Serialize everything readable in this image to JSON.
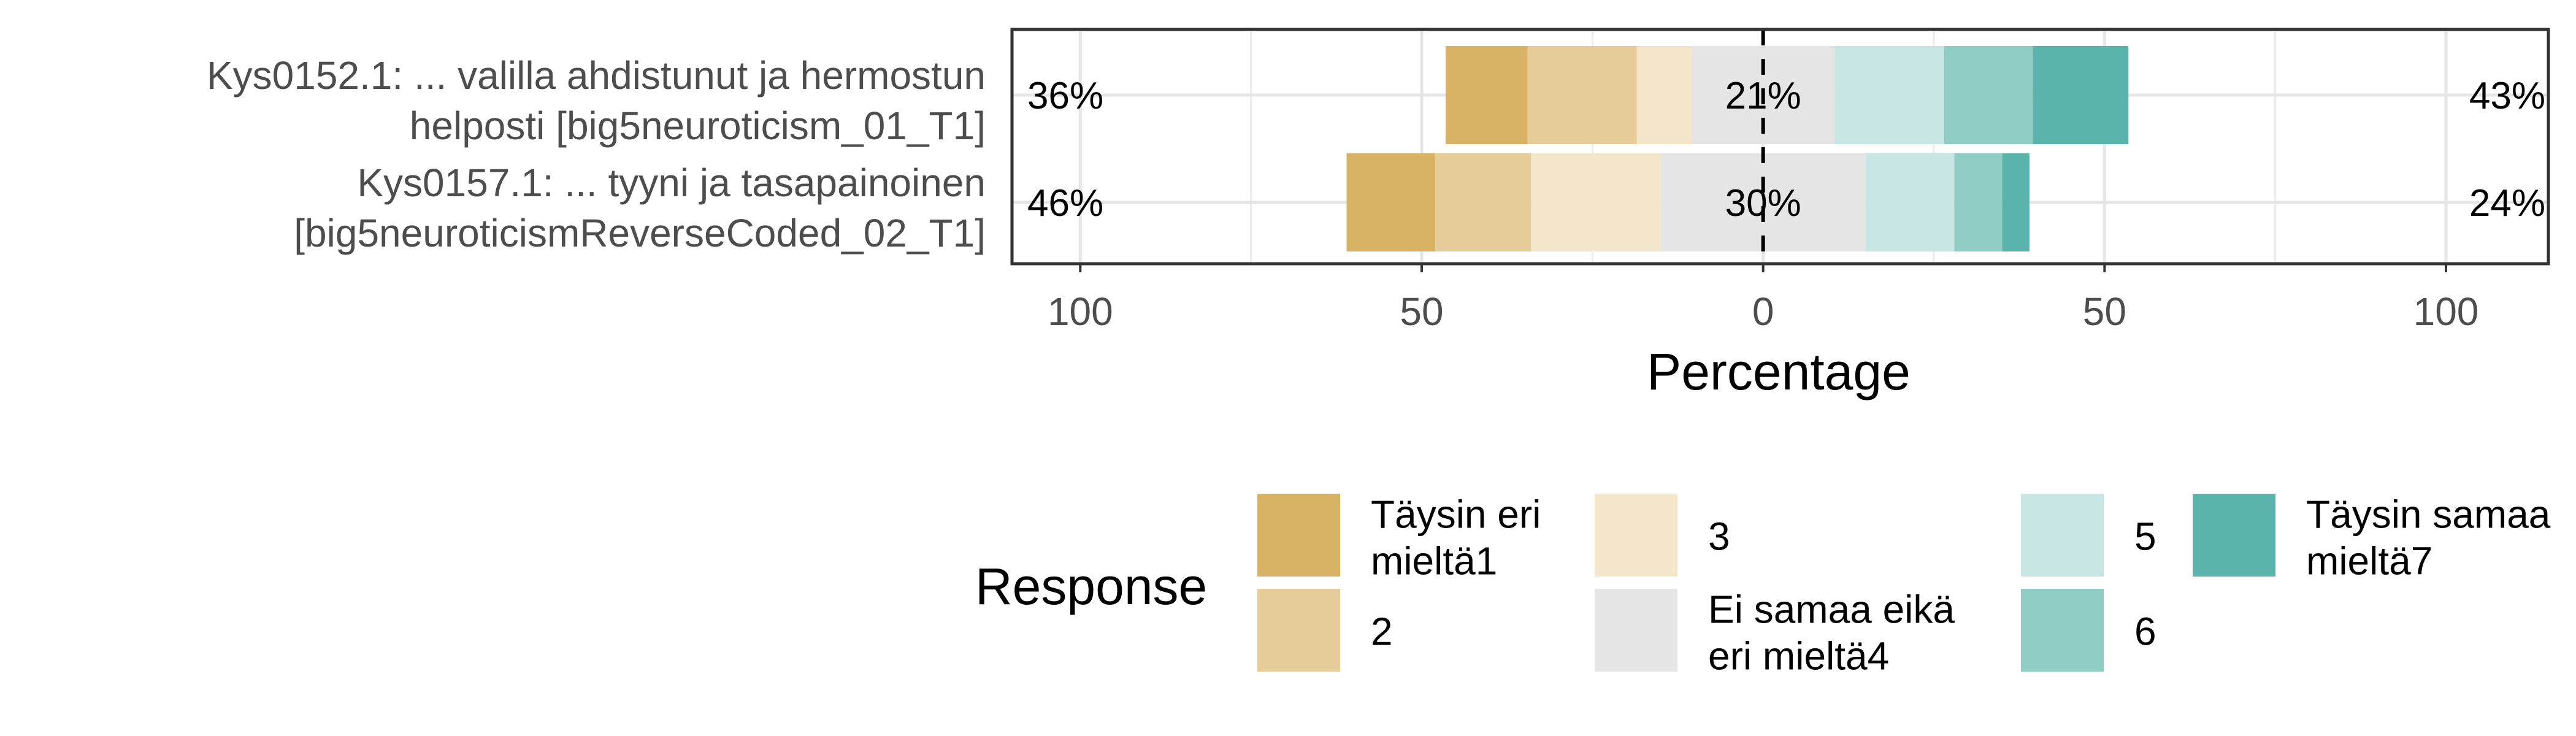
{
  "chart_data": {
    "type": "bar",
    "subtype": "diverging-stacked-likert",
    "xlabel": "Percentage",
    "xlim": [
      -110,
      115
    ],
    "x_ticks": [
      -100,
      -50,
      0,
      50,
      100
    ],
    "x_tick_labels": [
      "100",
      "50",
      "0",
      "50",
      "100"
    ],
    "grid": true,
    "legend_title": "Response",
    "legend_position": "bottom",
    "levels": [
      {
        "name": "Täysin eri mieltä1",
        "color": "#d8b365"
      },
      {
        "name": "2",
        "color": "#e6cc98"
      },
      {
        "name": "3",
        "color": "#f4e6cb"
      },
      {
        "name": "Ei samaa eikä eri mieltä4",
        "color": "#e5e5e5"
      },
      {
        "name": "5",
        "color": "#c7e6e3"
      },
      {
        "name": "6",
        "color": "#8fcdc4"
      },
      {
        "name": "Täysin samaa mieltä7",
        "color": "#5ab4ac"
      }
    ],
    "items": [
      {
        "label_line1": "Kys0152.1: ... valilla ahdistunut ja hermostun",
        "label_line2": "helposti [big5neuroticism_01_T1]",
        "values": [
          12,
          16,
          8,
          21,
          16,
          13,
          14
        ],
        "low_label": "36%",
        "neutral_label": "21%",
        "high_label": "43%"
      },
      {
        "label_line1": "Kys0157.1: ... tyyni ja tasapainoinen",
        "label_line2": "[big5neuroticismReverseCoded_02_T1]",
        "values": [
          13,
          14,
          19,
          30,
          13,
          7,
          4
        ],
        "low_label": "46%",
        "neutral_label": "30%",
        "high_label": "24%"
      }
    ]
  }
}
